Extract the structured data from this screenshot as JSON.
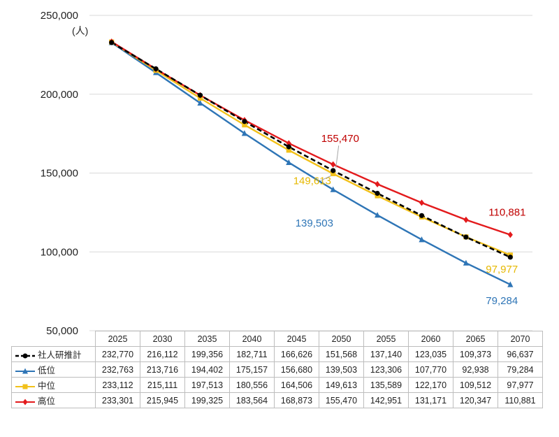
{
  "chart_data": {
    "type": "line",
    "unit_label": "(人)",
    "x": [
      "2025",
      "2030",
      "2035",
      "2040",
      "2045",
      "2050",
      "2055",
      "2060",
      "2065",
      "2070"
    ],
    "ylim": [
      50000,
      250000
    ],
    "yticks": [
      "250,000",
      "200,000",
      "150,000",
      "100,000",
      "50,000"
    ],
    "series": [
      {
        "name": "社人研推計",
        "color": "#000000",
        "marker": "circle",
        "dashed": true,
        "values": [
          232770,
          216112,
          199356,
          182711,
          166626,
          151568,
          137140,
          123035,
          109373,
          96637
        ],
        "labels": [
          "232,770",
          "216,112",
          "199,356",
          "182,711",
          "166,626",
          "151,568",
          "137,140",
          "123,035",
          "109,373",
          "96,637"
        ]
      },
      {
        "name": "低位",
        "color": "#2e75b6",
        "marker": "triangle",
        "dashed": false,
        "values": [
          232763,
          213716,
          194402,
          175157,
          156680,
          139503,
          123306,
          107770,
          92938,
          79284
        ],
        "labels": [
          "232,763",
          "213,716",
          "194,402",
          "175,157",
          "156,680",
          "139,503",
          "123,306",
          "107,770",
          "92,938",
          "79,284"
        ]
      },
      {
        "name": "中位",
        "color": "#f2c11a",
        "marker": "square",
        "dashed": false,
        "values": [
          233112,
          215111,
          197513,
          180556,
          164506,
          149613,
          135589,
          122170,
          109512,
          97977
        ],
        "labels": [
          "233,112",
          "215,111",
          "197,513",
          "180,556",
          "164,506",
          "149,613",
          "135,589",
          "122,170",
          "109,512",
          "97,977"
        ]
      },
      {
        "name": "高位",
        "color": "#e31a1c",
        "marker": "diamond",
        "dashed": false,
        "values": [
          233301,
          215945,
          199325,
          183564,
          168873,
          155470,
          142951,
          131171,
          120347,
          110881
        ],
        "labels": [
          "233,301",
          "215,945",
          "199,325",
          "183,564",
          "168,873",
          "155,470",
          "142,951",
          "131,171",
          "120,347",
          "110,881"
        ]
      }
    ],
    "annotations": [
      {
        "text": "155,470",
        "series": "高位",
        "x": "2050",
        "color": "#c00000"
      },
      {
        "text": "149,613",
        "series": "中位",
        "x": "2050",
        "color": "#e6b800"
      },
      {
        "text": "139,503",
        "series": "低位",
        "x": "2050",
        "color": "#2e75b6"
      },
      {
        "text": "110,881",
        "series": "高位",
        "x": "2070",
        "color": "#c00000"
      },
      {
        "text": "97,977",
        "series": "中位",
        "x": "2070",
        "color": "#e6b800"
      },
      {
        "text": "79,284",
        "series": "低位",
        "x": "2070",
        "color": "#2e75b6"
      }
    ]
  }
}
